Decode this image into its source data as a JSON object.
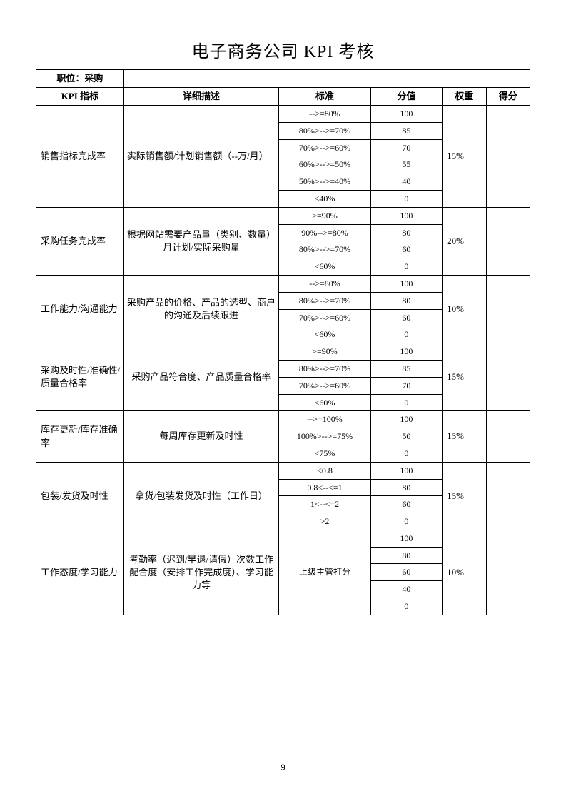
{
  "title": "电子商务公司 KPI 考核",
  "position_label": "职位：采购",
  "headers": {
    "kpi": "KPI 指标",
    "desc": "详细描述",
    "standard": "标准",
    "score": "分值",
    "weight": "权重",
    "result": "得分"
  },
  "rows": [
    {
      "kpi": "销售指标完成率",
      "desc": "实际销售额/计划销售额（--万/月）",
      "desc_align": "left",
      "weight": "15%",
      "standards": [
        {
          "std": "-->=80%",
          "score": "100"
        },
        {
          "std": "80%>-->=70%",
          "score": "85"
        },
        {
          "std": "70%>-->=60%",
          "score": "70"
        },
        {
          "std": "60%>-->=50%",
          "score": "55"
        },
        {
          "std": "50%>-->=40%",
          "score": "40"
        },
        {
          "std": "<40%",
          "score": "0"
        }
      ]
    },
    {
      "kpi": "采购任务完成率",
      "desc": "根据网站需要产品量（类别、数量）月计划/实际采购量",
      "desc_align": "center",
      "weight": "20%",
      "standards": [
        {
          "std": ">=90%",
          "score": "100"
        },
        {
          "std": "90%-->=80%",
          "score": "80"
        },
        {
          "std": "80%>-->=70%",
          "score": "60"
        },
        {
          "std": "<60%",
          "score": "0"
        }
      ]
    },
    {
      "kpi": "工作能力/沟通能力",
      "desc": "采购产品的价格、产品的选型、商户的沟通及后续跟进",
      "desc_align": "center",
      "weight": "10%",
      "standards": [
        {
          "std": "-->=80%",
          "score": "100"
        },
        {
          "std": "80%>-->=70%",
          "score": "80"
        },
        {
          "std": "70%>-->=60%",
          "score": "60"
        },
        {
          "std": "<60%",
          "score": "0"
        }
      ]
    },
    {
      "kpi": "采购及时性/准确性/质量合格率",
      "desc": "采购产品符合度、产品质量合格率",
      "desc_align": "center",
      "weight": "15%",
      "standards": [
        {
          "std": ">=90%",
          "score": "100"
        },
        {
          "std": "80%>-->=70%",
          "score": "85"
        },
        {
          "std": "70%>-->=60%",
          "score": "70"
        },
        {
          "std": "<60%",
          "score": "0"
        }
      ]
    },
    {
      "kpi": "库存更新/库存准确率",
      "desc": "每周库存更新及时性",
      "desc_align": "center",
      "weight": "15%",
      "standards": [
        {
          "std": "-->=100%",
          "score": "100"
        },
        {
          "std": "100%>-->=75%",
          "score": "50"
        },
        {
          "std": "<75%",
          "score": "0"
        }
      ]
    },
    {
      "kpi": "包装/发货及时性",
      "desc": "拿货/包装发货及时性（工作日）",
      "desc_align": "center",
      "weight": "15%",
      "standards": [
        {
          "std": "<0.8",
          "score": "100"
        },
        {
          "std": "0.8<--<=1",
          "score": "80"
        },
        {
          "std": "1<--<=2",
          "score": "60"
        },
        {
          "std": ">2",
          "score": "0"
        }
      ]
    },
    {
      "kpi": "工作态度/学习能力",
      "desc": "考勤率（迟到/早退/请假）次数工作配合度（安排工作完成度）、学习能力等",
      "desc_align": "center",
      "weight": "10%",
      "merged_standard": "上级主管打分",
      "standards": [
        {
          "score": "100"
        },
        {
          "score": "80"
        },
        {
          "score": "60"
        },
        {
          "score": "40"
        },
        {
          "score": "0"
        }
      ]
    }
  ],
  "page_number": "9",
  "col_widths": [
    "110px",
    "195px",
    "115px",
    "90px",
    "55px",
    "55px"
  ]
}
